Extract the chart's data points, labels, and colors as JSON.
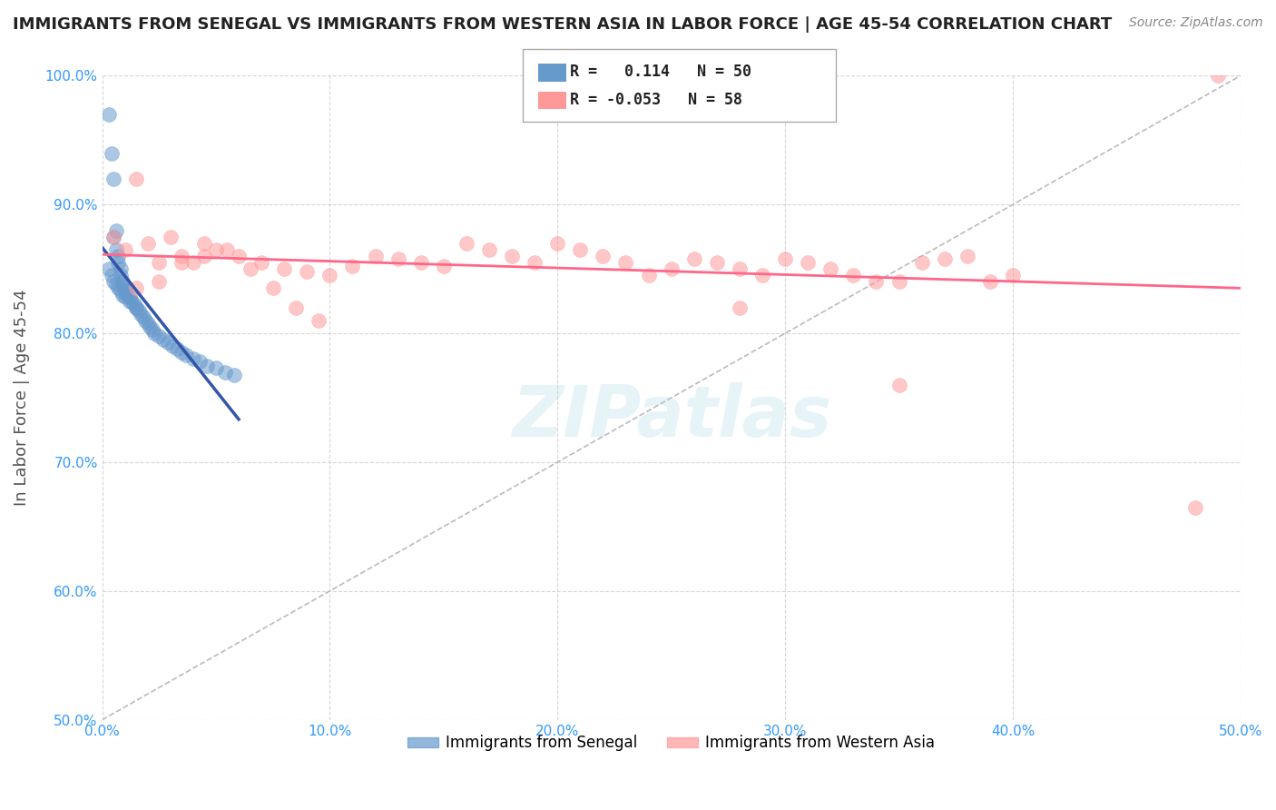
{
  "title": "IMMIGRANTS FROM SENEGAL VS IMMIGRANTS FROM WESTERN ASIA IN LABOR FORCE | AGE 45-54 CORRELATION CHART",
  "source": "Source: ZipAtlas.com",
  "ylabel": "In Labor Force | Age 45-54",
  "legend_label1": "Immigrants from Senegal",
  "legend_label2": "Immigrants from Western Asia",
  "R1": 0.114,
  "N1": 50,
  "R2": -0.053,
  "N2": 58,
  "xlim": [
    0.0,
    0.5
  ],
  "ylim": [
    0.5,
    1.0
  ],
  "xticks": [
    0.0,
    0.1,
    0.2,
    0.3,
    0.4,
    0.5
  ],
  "yticks": [
    0.5,
    0.6,
    0.7,
    0.8,
    0.9,
    1.0
  ],
  "xtick_labels": [
    "0.0%",
    "10.0%",
    "20.0%",
    "30.0%",
    "40.0%",
    "50.0%"
  ],
  "ytick_labels": [
    "50.0%",
    "60.0%",
    "70.0%",
    "80.0%",
    "90.0%",
    "100.0%"
  ],
  "color_senegal": "#6699CC",
  "color_western_asia": "#FF9999",
  "color_trendline_senegal": "#3355AA",
  "color_trendline_western_asia": "#FF6688",
  "color_diagonal": "#BBBBBB",
  "background_color": "#FFFFFF",
  "senegal_x": [
    0.003,
    0.004,
    0.005,
    0.005,
    0.006,
    0.006,
    0.007,
    0.007,
    0.008,
    0.008,
    0.009,
    0.009,
    0.01,
    0.01,
    0.011,
    0.012,
    0.013,
    0.014,
    0.015,
    0.016,
    0.017,
    0.018,
    0.019,
    0.02,
    0.021,
    0.022,
    0.023,
    0.025,
    0.027,
    0.029,
    0.031,
    0.033,
    0.035,
    0.037,
    0.04,
    0.043,
    0.046,
    0.05,
    0.054,
    0.058,
    0.003,
    0.004,
    0.005,
    0.006,
    0.007,
    0.008,
    0.009,
    0.01,
    0.012,
    0.015
  ],
  "senegal_y": [
    0.97,
    0.94,
    0.92,
    0.875,
    0.88,
    0.865,
    0.86,
    0.855,
    0.85,
    0.845,
    0.84,
    0.838,
    0.835,
    0.833,
    0.83,
    0.828,
    0.825,
    0.823,
    0.82,
    0.818,
    0.815,
    0.813,
    0.81,
    0.808,
    0.805,
    0.803,
    0.8,
    0.798,
    0.795,
    0.793,
    0.79,
    0.788,
    0.785,
    0.783,
    0.78,
    0.778,
    0.775,
    0.773,
    0.77,
    0.768,
    0.85,
    0.845,
    0.84,
    0.838,
    0.835,
    0.833,
    0.83,
    0.828,
    0.825,
    0.82
  ],
  "western_asia_x": [
    0.005,
    0.01,
    0.015,
    0.02,
    0.025,
    0.03,
    0.035,
    0.04,
    0.045,
    0.05,
    0.06,
    0.07,
    0.08,
    0.09,
    0.1,
    0.11,
    0.12,
    0.13,
    0.14,
    0.15,
    0.16,
    0.17,
    0.18,
    0.19,
    0.2,
    0.21,
    0.22,
    0.23,
    0.24,
    0.25,
    0.26,
    0.27,
    0.28,
    0.29,
    0.3,
    0.31,
    0.32,
    0.33,
    0.34,
    0.35,
    0.36,
    0.37,
    0.38,
    0.39,
    0.4,
    0.35,
    0.28,
    0.49,
    0.025,
    0.015,
    0.035,
    0.045,
    0.055,
    0.065,
    0.075,
    0.085,
    0.095,
    0.48
  ],
  "western_asia_y": [
    0.875,
    0.865,
    0.92,
    0.87,
    0.855,
    0.875,
    0.86,
    0.855,
    0.87,
    0.865,
    0.86,
    0.855,
    0.85,
    0.848,
    0.845,
    0.852,
    0.86,
    0.858,
    0.855,
    0.852,
    0.87,
    0.865,
    0.86,
    0.855,
    0.87,
    0.865,
    0.86,
    0.855,
    0.845,
    0.85,
    0.858,
    0.855,
    0.85,
    0.845,
    0.858,
    0.855,
    0.85,
    0.845,
    0.84,
    0.84,
    0.855,
    0.858,
    0.86,
    0.84,
    0.845,
    0.76,
    0.82,
    1.0,
    0.84,
    0.835,
    0.855,
    0.86,
    0.865,
    0.85,
    0.835,
    0.82,
    0.81,
    0.665
  ]
}
